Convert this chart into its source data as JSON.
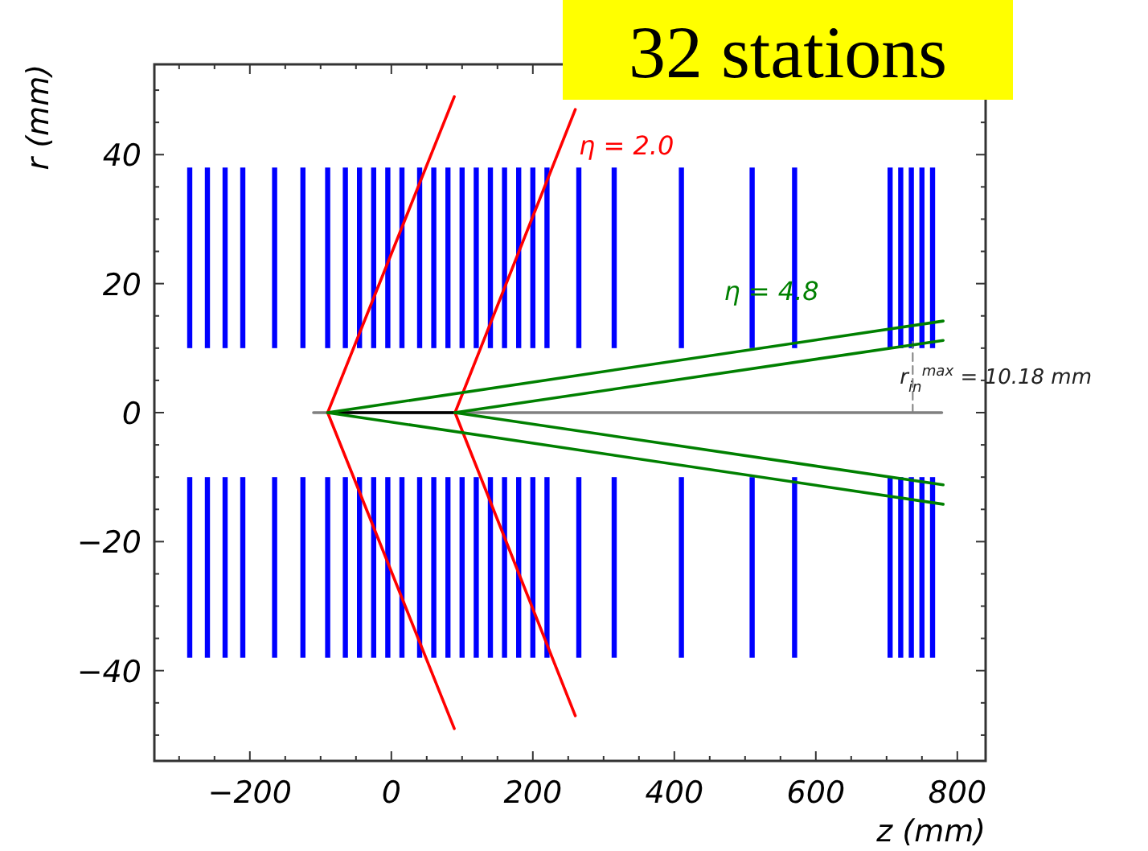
{
  "chart_data": {
    "type": "line",
    "title": "32 stations",
    "xlabel": "z (mm)",
    "ylabel": "r (mm)",
    "xlim": [
      -335,
      840
    ],
    "ylim": [
      -54,
      54
    ],
    "xticks": [
      {
        "value": -300,
        "label": null
      },
      {
        "value": -250,
        "label": null
      },
      -200,
      {
        "value": -150,
        "label": null
      },
      {
        "value": -100,
        "label": null
      },
      {
        "value": -50,
        "label": null
      },
      0,
      {
        "value": 50,
        "label": null
      },
      {
        "value": 100,
        "label": null
      },
      {
        "value": 150,
        "label": null
      },
      200,
      {
        "value": 250,
        "label": null
      },
      {
        "value": 300,
        "label": null
      },
      {
        "value": 350,
        "label": null
      },
      400,
      {
        "value": 450,
        "label": null
      },
      {
        "value": 500,
        "label": null
      },
      {
        "value": 550,
        "label": null
      },
      600,
      {
        "value": 650,
        "label": null
      },
      {
        "value": 700,
        "label": null
      },
      {
        "value": 750,
        "label": null
      },
      800
    ],
    "yticks": [
      {
        "value": -50,
        "label": null
      },
      {
        "value": -45,
        "label": null
      },
      -40,
      {
        "value": -35,
        "label": null
      },
      {
        "value": -30,
        "label": null
      },
      {
        "value": -25,
        "label": null
      },
      -20,
      {
        "value": -15,
        "label": null
      },
      {
        "value": -10,
        "label": null
      },
      {
        "value": -5,
        "label": null
      },
      0,
      {
        "value": 5,
        "label": null
      },
      {
        "value": 10,
        "label": null
      },
      {
        "value": 15,
        "label": null
      },
      20,
      {
        "value": 25,
        "label": null
      },
      {
        "value": 30,
        "label": null
      },
      {
        "value": 35,
        "label": null
      },
      40,
      {
        "value": 45,
        "label": null
      },
      {
        "value": 50,
        "label": null
      }
    ],
    "grid": false,
    "series": [
      {
        "type": "bar",
        "color": "#0000ff",
        "x": [
          -285,
          -260,
          -235,
          -210,
          -165,
          -125,
          -90,
          -65,
          -45,
          -25,
          -5,
          15,
          40,
          60,
          80,
          100,
          120,
          140,
          160,
          180,
          200,
          220,
          265,
          315,
          410,
          510,
          570,
          705,
          720,
          735,
          750,
          765
        ],
        "base": [
          10,
          10,
          10,
          10,
          10,
          10,
          10,
          10,
          10,
          10,
          10,
          10,
          10,
          10,
          10,
          10,
          10,
          10,
          10,
          10,
          10,
          10,
          10,
          10,
          10,
          10,
          10,
          10,
          10,
          10,
          10,
          10
        ],
        "values": [
          28,
          28,
          28,
          28,
          28,
          28,
          28,
          28,
          28,
          28,
          28,
          28,
          28,
          28,
          28,
          28,
          28,
          28,
          28,
          28,
          28,
          28,
          28,
          28,
          28,
          28,
          28,
          28,
          28,
          28,
          28,
          28
        ]
      },
      {
        "type": "bar",
        "color": "#0000ff",
        "x": [
          -285,
          -260,
          -235,
          -210,
          -165,
          -125,
          -90,
          -65,
          -45,
          -25,
          -5,
          15,
          40,
          60,
          80,
          100,
          120,
          140,
          160,
          180,
          200,
          220,
          265,
          315,
          410,
          510,
          570,
          705,
          720,
          735,
          750,
          765
        ],
        "base": [
          -38,
          -38,
          -38,
          -38,
          -38,
          -38,
          -38,
          -38,
          -38,
          -38,
          -38,
          -38,
          -38,
          -38,
          -38,
          -38,
          -38,
          -38,
          -38,
          -38,
          -38,
          -38,
          -38,
          -38,
          -38,
          -38,
          -38,
          -38,
          -38,
          -38,
          -38,
          -38
        ],
        "values": [
          28,
          28,
          28,
          28,
          28,
          28,
          28,
          28,
          28,
          28,
          28,
          28,
          28,
          28,
          28,
          28,
          28,
          28,
          28,
          28,
          28,
          28,
          28,
          28,
          28,
          28,
          28,
          28,
          28,
          28,
          28,
          28
        ]
      },
      {
        "color": "#808080",
        "x": [
          -110,
          778
        ],
        "values": [
          0,
          0
        ]
      },
      {
        "color": "#000000",
        "x": [
          -90,
          90
        ],
        "values": [
          0,
          0
        ]
      },
      {
        "color": "#808080",
        "line_style": "dashed",
        "x": [
          737,
          737
        ],
        "values": [
          0,
          11
        ]
      },
      {
        "color": "#ff0000",
        "x": [
          89,
          -90,
          89
        ],
        "values": [
          49,
          0,
          -49
        ]
      },
      {
        "color": "#ff0000",
        "x": [
          260,
          90,
          260
        ],
        "values": [
          47,
          0,
          -47
        ]
      },
      {
        "color": "#008000",
        "x": [
          -90,
          780
        ],
        "values": [
          0,
          14.2
        ]
      },
      {
        "color": "#008000",
        "x": [
          90,
          780
        ],
        "values": [
          0,
          11.2
        ]
      },
      {
        "color": "#008000",
        "x": [
          -90,
          780
        ],
        "values": [
          0,
          -14.2
        ]
      },
      {
        "color": "#008000",
        "x": [
          90,
          780
        ],
        "values": [
          0,
          -11.2
        ]
      }
    ],
    "annotations": [
      "η = 2.0",
      "η = 4.8",
      "r$_{in}$$^{max}$ = 10.18 mm"
    ]
  }
}
